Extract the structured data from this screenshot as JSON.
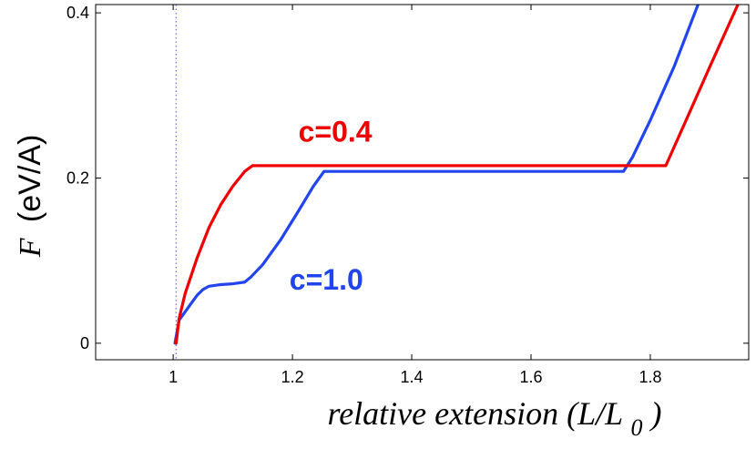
{
  "chart_data": {
    "type": "line",
    "title": "",
    "xlabel": "relative extension (L/L",
    "xlabel_sub": "0",
    "xlabel_close": ")",
    "ylabel_var": "F",
    "ylabel_unit": "(eV/A)",
    "xlim": [
      0.87,
      1.965
    ],
    "ylim": [
      -0.02,
      0.41
    ],
    "x_ticks": [
      {
        "value": 1.0,
        "label": "1"
      },
      {
        "value": 1.2,
        "label": "1.2"
      },
      {
        "value": 1.4,
        "label": "1.4"
      },
      {
        "value": 1.6,
        "label": "1.6"
      },
      {
        "value": 1.8,
        "label": "1.8"
      }
    ],
    "y_ticks": [
      {
        "value": 0.0,
        "label": "0"
      },
      {
        "value": 0.2,
        "label": "0.2"
      },
      {
        "value": 0.4,
        "label": "0.4"
      }
    ],
    "reference_line": {
      "x": 1.005,
      "color": "#8080ff",
      "style": "dotted"
    },
    "series": [
      {
        "name": "c=0.4",
        "color": "#ee0000",
        "x": [
          1.005,
          1.01,
          1.02,
          1.04,
          1.06,
          1.08,
          1.1,
          1.12,
          1.133,
          1.2,
          1.4,
          1.6,
          1.76,
          1.826,
          1.86,
          1.9,
          1.95
        ],
        "y": [
          0.0,
          0.03,
          0.06,
          0.103,
          0.14,
          0.168,
          0.19,
          0.208,
          0.215,
          0.215,
          0.215,
          0.215,
          0.215,
          0.215,
          0.27,
          0.335,
          0.415
        ]
      },
      {
        "name": "c=1.0",
        "color": "#2244ee",
        "x": [
          1.003,
          1.01,
          1.02,
          1.03,
          1.04,
          1.05,
          1.06,
          1.08,
          1.1,
          1.12,
          1.13,
          1.15,
          1.18,
          1.21,
          1.235,
          1.253,
          1.4,
          1.6,
          1.755,
          1.77,
          1.8,
          1.84,
          1.88
        ],
        "y": [
          0.0,
          0.028,
          0.038,
          0.048,
          0.058,
          0.065,
          0.069,
          0.071,
          0.072,
          0.074,
          0.08,
          0.095,
          0.125,
          0.16,
          0.19,
          0.208,
          0.208,
          0.208,
          0.208,
          0.225,
          0.27,
          0.335,
          0.41
        ]
      }
    ],
    "annotations": [
      {
        "text": "c=0.4",
        "x": 1.21,
        "y": 0.244,
        "color": "#ee0000"
      },
      {
        "text": "c=1.0",
        "x": 1.195,
        "y": 0.065,
        "color": "#2244ee"
      }
    ]
  }
}
